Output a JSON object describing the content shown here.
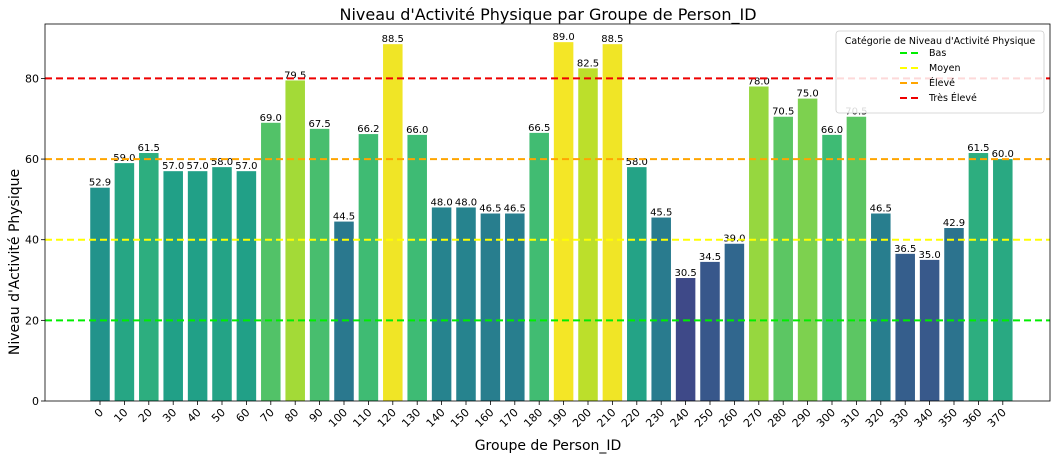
{
  "chart_data": {
    "type": "bar",
    "title": "Niveau d'Activité Physique par Groupe de Person_ID",
    "xlabel": "Groupe de Person_ID",
    "ylabel": "Niveau d'Activité Physique",
    "categories": [
      "0",
      "10",
      "20",
      "30",
      "40",
      "50",
      "60",
      "70",
      "80",
      "90",
      "100",
      "110",
      "120",
      "130",
      "140",
      "150",
      "160",
      "170",
      "180",
      "190",
      "200",
      "210",
      "220",
      "230",
      "240",
      "250",
      "260",
      "270",
      "280",
      "290",
      "300",
      "310",
      "320",
      "330",
      "340",
      "350",
      "360",
      "370"
    ],
    "values": [
      52.9,
      59.0,
      61.5,
      57.0,
      57.0,
      58.0,
      57.0,
      69.0,
      79.5,
      67.5,
      44.5,
      66.2,
      88.5,
      66.0,
      48.0,
      48.0,
      46.5,
      46.5,
      66.5,
      89.0,
      82.5,
      88.5,
      58.0,
      45.5,
      30.5,
      34.5,
      39.0,
      78.0,
      70.5,
      75.0,
      66.0,
      70.5,
      46.5,
      36.5,
      35.0,
      42.9,
      61.5,
      60.0
    ],
    "value_labels": [
      "52.9",
      "59.0",
      "61.5",
      "57.0",
      "57.0",
      "58.0",
      "57.0",
      "69.0",
      "79.5",
      "67.5",
      "44.5",
      "66.2",
      "88.5",
      "66.0",
      "48.0",
      "48.0",
      "46.5",
      "46.5",
      "66.5",
      "89.0",
      "82.5",
      "88.5",
      "58.0",
      "45.5",
      "30.5",
      "34.5",
      "39.0",
      "78.0",
      "70.5",
      "75.0",
      "66.0",
      "70.5",
      "46.5",
      "36.5",
      "35.0",
      "42.9",
      "61.5",
      "60.0"
    ],
    "ylim": [
      0,
      93.5
    ],
    "yticks": [
      0,
      20,
      40,
      60,
      80
    ],
    "ytick_labels": [
      "0",
      "20",
      "40",
      "60",
      "80"
    ],
    "colormap": "viridis",
    "reference_lines": [
      {
        "name": "Bas",
        "value": 20,
        "color": "#00ee00"
      },
      {
        "name": "Moyen",
        "value": 40,
        "color": "#ffff00"
      },
      {
        "name": "Élevé",
        "value": 60,
        "color": "#ffa500"
      },
      {
        "name": "Très Élevé",
        "value": 80,
        "color": "#ee0000"
      }
    ],
    "legend": {
      "title": "Catégorie de Niveau d'Activité Physique",
      "placement": "top-right"
    },
    "grid": false
  }
}
